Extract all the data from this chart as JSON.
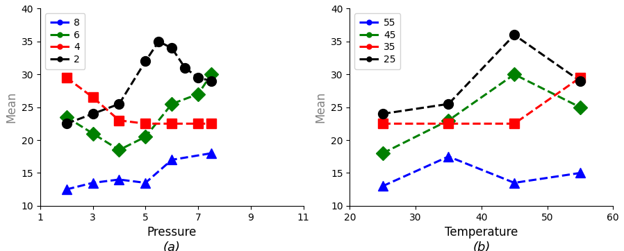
{
  "panel_a": {
    "xlabel": "Pressure",
    "ylabel": "Mean",
    "xlim": [
      1,
      11
    ],
    "ylim": [
      10,
      40
    ],
    "xticks": [
      1,
      3,
      5,
      7,
      9,
      11
    ],
    "yticks": [
      10,
      15,
      20,
      25,
      30,
      35,
      40
    ],
    "label": "(a)",
    "series": [
      {
        "label": "8",
        "color": "blue",
        "marker": "^",
        "x": [
          2,
          3,
          4,
          5,
          6,
          7.5
        ],
        "y": [
          12.5,
          13.5,
          14.0,
          13.5,
          17.0,
          18.0
        ]
      },
      {
        "label": "6",
        "color": "green",
        "marker": "D",
        "x": [
          2,
          3,
          4,
          5,
          6,
          7,
          7.5
        ],
        "y": [
          23.5,
          21.0,
          18.5,
          20.5,
          25.5,
          27.0,
          30.0
        ]
      },
      {
        "label": "4",
        "color": "red",
        "marker": "s",
        "x": [
          2,
          3,
          4,
          5,
          6,
          7,
          7.5
        ],
        "y": [
          29.5,
          26.5,
          23.0,
          22.5,
          22.5,
          22.5,
          22.5
        ]
      },
      {
        "label": "2",
        "color": "black",
        "marker": "o",
        "x": [
          2,
          3,
          4,
          5,
          5.5,
          6,
          6.5,
          7,
          7.5
        ],
        "y": [
          22.5,
          24.0,
          25.5,
          32.0,
          35.0,
          34.0,
          31.0,
          29.5,
          29.0
        ]
      }
    ]
  },
  "panel_b": {
    "xlabel": "Temperature",
    "ylabel": "Mean",
    "xlim": [
      20,
      60
    ],
    "ylim": [
      10,
      40
    ],
    "xticks": [
      20,
      30,
      40,
      50,
      60
    ],
    "yticks": [
      10,
      15,
      20,
      25,
      30,
      35,
      40
    ],
    "label": "(b)",
    "series": [
      {
        "label": "55",
        "color": "blue",
        "marker": "^",
        "x": [
          25,
          35,
          45,
          55
        ],
        "y": [
          13.0,
          17.5,
          13.5,
          15.0
        ]
      },
      {
        "label": "45",
        "color": "green",
        "marker": "D",
        "x": [
          25,
          35,
          45,
          55
        ],
        "y": [
          18.0,
          23.0,
          30.0,
          25.0
        ]
      },
      {
        "label": "35",
        "color": "red",
        "marker": "s",
        "x": [
          25,
          35,
          45,
          55
        ],
        "y": [
          22.5,
          22.5,
          22.5,
          29.5
        ]
      },
      {
        "label": "25",
        "color": "black",
        "marker": "o",
        "x": [
          25,
          35,
          45,
          55
        ],
        "y": [
          24.0,
          25.5,
          36.0,
          29.0
        ]
      }
    ]
  },
  "fig_width": 8.98,
  "fig_height": 3.62,
  "dpi": 100,
  "line_width": 2.2,
  "large_marker_size": 10,
  "small_dot_size": 5,
  "legend_fontsize": 10,
  "axis_label_fontsize": 12,
  "tick_labelsize": 10,
  "sublabel_fontsize": 13
}
